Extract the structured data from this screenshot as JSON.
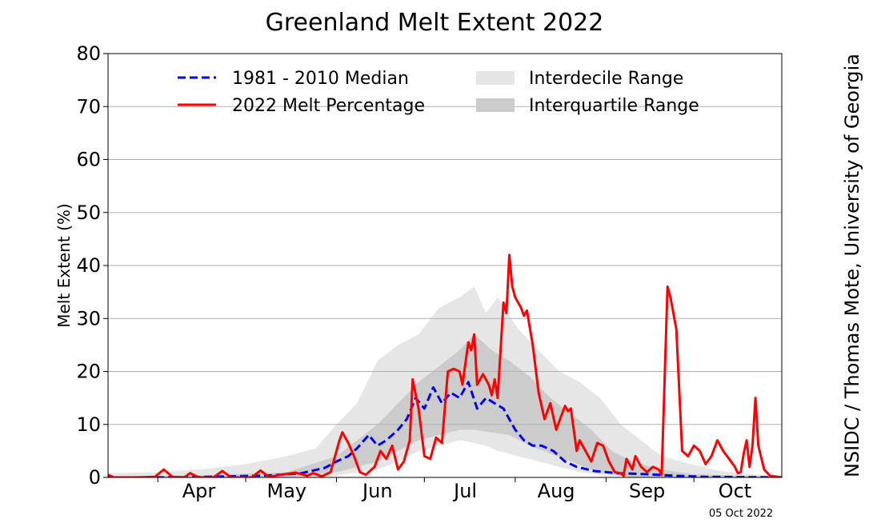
{
  "chart_data": {
    "type": "line",
    "title": "Greenland Melt Extent 2022",
    "xlabel": "",
    "ylabel": "Melt Extent (%)",
    "ylim": [
      0,
      80
    ],
    "yticks": [
      0,
      10,
      20,
      30,
      40,
      50,
      60,
      70,
      80
    ],
    "xlim": [
      "2022-03-15",
      "2022-10-31"
    ],
    "xticks": [
      {
        "label": "Apr",
        "date": "2022-04-15"
      },
      {
        "label": "May",
        "date": "2022-05-15"
      },
      {
        "label": "Jun",
        "date": "2022-06-15"
      },
      {
        "label": "Jul",
        "date": "2022-07-15"
      },
      {
        "label": "Aug",
        "date": "2022-08-15"
      },
      {
        "label": "Sep",
        "date": "2022-09-15"
      },
      {
        "label": "Oct",
        "date": "2022-10-15"
      }
    ],
    "grid": "horizontal",
    "legend_position": "top",
    "colors": {
      "median": "#0000ee",
      "melt": "#ff0000",
      "interdecile": "#e6e6e6",
      "interquartile": "#cccccc"
    },
    "series": [
      {
        "name": "1981 - 2010 Median",
        "style": "dashed",
        "points": [
          [
            "2022-03-15",
            0
          ],
          [
            "2022-04-10",
            0
          ],
          [
            "2022-04-25",
            0.2
          ],
          [
            "2022-05-10",
            0.4
          ],
          [
            "2022-05-20",
            0.8
          ],
          [
            "2022-05-28",
            1.8
          ],
          [
            "2022-06-01",
            3
          ],
          [
            "2022-06-05",
            4
          ],
          [
            "2022-06-08",
            5.5
          ],
          [
            "2022-06-12",
            8
          ],
          [
            "2022-06-15",
            6
          ],
          [
            "2022-06-18",
            7
          ],
          [
            "2022-06-22",
            9
          ],
          [
            "2022-06-25",
            11
          ],
          [
            "2022-06-28",
            15
          ],
          [
            "2022-07-01",
            13
          ],
          [
            "2022-07-04",
            17
          ],
          [
            "2022-07-07",
            14
          ],
          [
            "2022-07-10",
            16
          ],
          [
            "2022-07-13",
            15
          ],
          [
            "2022-07-16",
            18
          ],
          [
            "2022-07-19",
            13
          ],
          [
            "2022-07-22",
            15
          ],
          [
            "2022-07-25",
            14
          ],
          [
            "2022-07-28",
            13
          ],
          [
            "2022-08-01",
            9
          ],
          [
            "2022-08-04",
            7
          ],
          [
            "2022-08-07",
            6
          ],
          [
            "2022-08-10",
            6
          ],
          [
            "2022-08-14",
            5
          ],
          [
            "2022-08-18",
            3
          ],
          [
            "2022-08-22",
            2
          ],
          [
            "2022-08-28",
            1.2
          ],
          [
            "2022-09-05",
            0.8
          ],
          [
            "2022-09-15",
            0.6
          ],
          [
            "2022-09-25",
            0.3
          ],
          [
            "2022-10-05",
            0.1
          ],
          [
            "2022-10-31",
            0
          ]
        ]
      },
      {
        "name": "2022 Melt Percentage",
        "style": "solid",
        "points": [
          [
            "2022-03-15",
            0.5
          ],
          [
            "2022-03-17",
            0
          ],
          [
            "2022-03-25",
            0
          ],
          [
            "2022-03-31",
            0.1
          ],
          [
            "2022-04-03",
            1.5
          ],
          [
            "2022-04-06",
            0.1
          ],
          [
            "2022-04-10",
            0
          ],
          [
            "2022-04-12",
            0.8
          ],
          [
            "2022-04-15",
            0
          ],
          [
            "2022-04-20",
            0
          ],
          [
            "2022-04-23",
            1.2
          ],
          [
            "2022-04-26",
            0
          ],
          [
            "2022-05-03",
            0
          ],
          [
            "2022-05-06",
            1.3
          ],
          [
            "2022-05-09",
            0.1
          ],
          [
            "2022-05-13",
            0.5
          ],
          [
            "2022-05-18",
            0.9
          ],
          [
            "2022-05-22",
            0.3
          ],
          [
            "2022-05-24",
            0.8
          ],
          [
            "2022-05-27",
            0.2
          ],
          [
            "2022-05-30",
            1
          ],
          [
            "2022-06-02",
            7
          ],
          [
            "2022-06-03",
            8.5
          ],
          [
            "2022-06-05",
            6.5
          ],
          [
            "2022-06-07",
            4
          ],
          [
            "2022-06-09",
            1
          ],
          [
            "2022-06-11",
            0.5
          ],
          [
            "2022-06-14",
            2
          ],
          [
            "2022-06-16",
            5
          ],
          [
            "2022-06-18",
            3.5
          ],
          [
            "2022-06-20",
            6
          ],
          [
            "2022-06-22",
            1.5
          ],
          [
            "2022-06-24",
            3
          ],
          [
            "2022-06-26",
            7
          ],
          [
            "2022-06-27",
            18.5
          ],
          [
            "2022-06-29",
            13
          ],
          [
            "2022-07-01",
            4
          ],
          [
            "2022-07-03",
            3.5
          ],
          [
            "2022-07-05",
            7.5
          ],
          [
            "2022-07-07",
            6.5
          ],
          [
            "2022-07-09",
            20
          ],
          [
            "2022-07-11",
            20.5
          ],
          [
            "2022-07-13",
            20
          ],
          [
            "2022-07-14",
            17.5
          ],
          [
            "2022-07-16",
            25.5
          ],
          [
            "2022-07-17",
            24
          ],
          [
            "2022-07-18",
            27
          ],
          [
            "2022-07-19",
            17.5
          ],
          [
            "2022-07-21",
            19.5
          ],
          [
            "2022-07-23",
            17.5
          ],
          [
            "2022-07-24",
            15.5
          ],
          [
            "2022-07-25",
            18.5
          ],
          [
            "2022-07-26",
            15
          ],
          [
            "2022-07-28",
            33
          ],
          [
            "2022-07-29",
            31
          ],
          [
            "2022-07-30",
            42
          ],
          [
            "2022-07-31",
            36
          ],
          [
            "2022-08-01",
            34
          ],
          [
            "2022-08-03",
            32
          ],
          [
            "2022-08-04",
            30.5
          ],
          [
            "2022-08-05",
            31.5
          ],
          [
            "2022-08-07",
            25
          ],
          [
            "2022-08-09",
            16
          ],
          [
            "2022-08-11",
            11
          ],
          [
            "2022-08-13",
            14
          ],
          [
            "2022-08-15",
            9
          ],
          [
            "2022-08-17",
            12
          ],
          [
            "2022-08-18",
            13.5
          ],
          [
            "2022-08-19",
            12.5
          ],
          [
            "2022-08-20",
            13
          ],
          [
            "2022-08-22",
            5
          ],
          [
            "2022-08-23",
            7
          ],
          [
            "2022-08-25",
            5
          ],
          [
            "2022-08-27",
            3
          ],
          [
            "2022-08-29",
            6.5
          ],
          [
            "2022-08-31",
            6
          ],
          [
            "2022-09-02",
            3
          ],
          [
            "2022-09-04",
            1
          ],
          [
            "2022-09-06",
            0.8
          ],
          [
            "2022-09-07",
            0.3
          ],
          [
            "2022-09-08",
            3.5
          ],
          [
            "2022-09-10",
            1.5
          ],
          [
            "2022-09-11",
            4
          ],
          [
            "2022-09-13",
            2
          ],
          [
            "2022-09-15",
            1
          ],
          [
            "2022-09-17",
            2
          ],
          [
            "2022-09-19",
            1.5
          ],
          [
            "2022-09-20",
            0.5
          ],
          [
            "2022-09-22",
            36
          ],
          [
            "2022-09-23",
            34
          ],
          [
            "2022-09-25",
            28
          ],
          [
            "2022-09-27",
            5
          ],
          [
            "2022-09-29",
            4
          ],
          [
            "2022-10-01",
            6
          ],
          [
            "2022-10-03",
            5
          ],
          [
            "2022-10-05",
            2.5
          ],
          [
            "2022-10-07",
            4
          ],
          [
            "2022-10-09",
            7
          ],
          [
            "2022-10-11",
            5
          ],
          [
            "2022-10-13",
            3.5
          ],
          [
            "2022-10-15",
            2
          ],
          [
            "2022-10-16",
            0.8
          ],
          [
            "2022-10-17",
            1
          ],
          [
            "2022-10-18",
            4.5
          ],
          [
            "2022-10-19",
            7
          ],
          [
            "2022-10-20",
            2
          ],
          [
            "2022-10-21",
            6
          ],
          [
            "2022-10-22",
            15
          ],
          [
            "2022-10-23",
            6
          ],
          [
            "2022-10-25",
            1.5
          ],
          [
            "2022-10-27",
            0.3
          ],
          [
            "2022-10-31",
            0
          ]
        ]
      }
    ],
    "bands": [
      {
        "name": "Interdecile Range",
        "points": [
          [
            "2022-03-15",
            0,
            0.8
          ],
          [
            "2022-04-01",
            0,
            1
          ],
          [
            "2022-04-15",
            0,
            1.5
          ],
          [
            "2022-05-01",
            0,
            2.5
          ],
          [
            "2022-05-15",
            0,
            4
          ],
          [
            "2022-05-25",
            0,
            5.5
          ],
          [
            "2022-06-01",
            0.3,
            10
          ],
          [
            "2022-06-08",
            1,
            14
          ],
          [
            "2022-06-15",
            1.5,
            22
          ],
          [
            "2022-06-22",
            3,
            25
          ],
          [
            "2022-06-29",
            5,
            27
          ],
          [
            "2022-07-06",
            6,
            32
          ],
          [
            "2022-07-13",
            7,
            34
          ],
          [
            "2022-07-18",
            6.5,
            36
          ],
          [
            "2022-07-22",
            6,
            31
          ],
          [
            "2022-07-26",
            5,
            34
          ],
          [
            "2022-08-02",
            4,
            28
          ],
          [
            "2022-08-09",
            3,
            24
          ],
          [
            "2022-08-16",
            2,
            20
          ],
          [
            "2022-08-23",
            1,
            18
          ],
          [
            "2022-08-30",
            0.5,
            15
          ],
          [
            "2022-09-06",
            0.2,
            10
          ],
          [
            "2022-09-13",
            0,
            7
          ],
          [
            "2022-09-20",
            0,
            4
          ],
          [
            "2022-09-30",
            0,
            2.5
          ],
          [
            "2022-10-10",
            0,
            1.2
          ],
          [
            "2022-10-20",
            0,
            0.6
          ],
          [
            "2022-10-31",
            0,
            0.3
          ]
        ]
      },
      {
        "name": "Interquartile Range",
        "points": [
          [
            "2022-03-15",
            0,
            0.2
          ],
          [
            "2022-04-15",
            0,
            0.4
          ],
          [
            "2022-05-15",
            0,
            1
          ],
          [
            "2022-06-01",
            1,
            4
          ],
          [
            "2022-06-08",
            2,
            7
          ],
          [
            "2022-06-15",
            3,
            10
          ],
          [
            "2022-06-22",
            5,
            14
          ],
          [
            "2022-06-29",
            7,
            18
          ],
          [
            "2022-07-06",
            8,
            21
          ],
          [
            "2022-07-13",
            9,
            24
          ],
          [
            "2022-07-18",
            9,
            27
          ],
          [
            "2022-07-24",
            8.5,
            24
          ],
          [
            "2022-07-30",
            8,
            22
          ],
          [
            "2022-08-06",
            6,
            19
          ],
          [
            "2022-08-13",
            4.5,
            15
          ],
          [
            "2022-08-20",
            3,
            12
          ],
          [
            "2022-08-27",
            1.5,
            9
          ],
          [
            "2022-09-03",
            0.5,
            5
          ],
          [
            "2022-09-10",
            0,
            3
          ],
          [
            "2022-09-20",
            0,
            1.5
          ],
          [
            "2022-10-01",
            0,
            0.6
          ],
          [
            "2022-10-31",
            0,
            0.1
          ]
        ]
      }
    ]
  },
  "credit": "NSIDC / Thomas Mote, University of Georgia",
  "date_stamp": "05 Oct 2022"
}
